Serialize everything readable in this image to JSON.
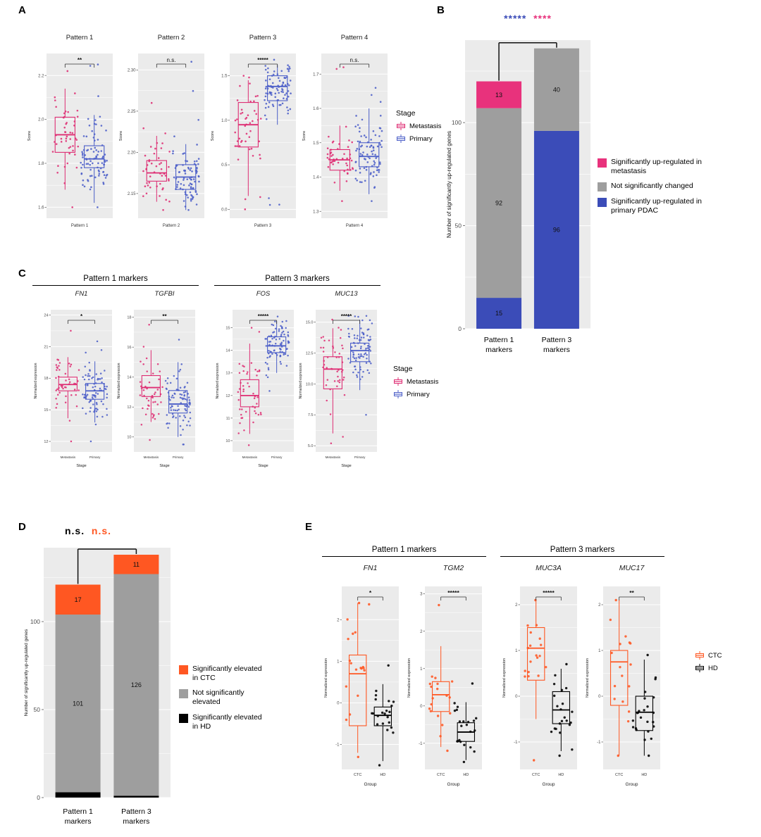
{
  "panels": {
    "A": {
      "label": "A"
    },
    "B": {
      "label": "B"
    },
    "C": {
      "label": "C"
    },
    "D": {
      "label": "D"
    },
    "E": {
      "label": "E"
    }
  },
  "colors": {
    "metastasis_pink": "#DE2D73",
    "primary_blue": "#4C5FC8",
    "bar_blue": "#3B4CB8",
    "bar_pink": "#E8327C",
    "not_sig_gray": "#9E9E9E",
    "ctc_orange": "#FF5722",
    "hd_black": "#000000",
    "plot_bg": "#EBEBEB"
  },
  "chart_data": [
    {
      "panel": "A",
      "type": "boxplot",
      "ylabel": "Score",
      "legend": {
        "title": "Stage",
        "items": [
          {
            "label": "Metastasis",
            "color": "#DE2D73"
          },
          {
            "label": "Primary",
            "color": "#4C5FC8"
          }
        ]
      },
      "facets": [
        {
          "title": "Pattern 1",
          "xlabel": "Pattern 1",
          "sig": "**",
          "ylim": [
            1.55,
            2.3
          ],
          "yticks": [
            "1.6",
            "1.8",
            "2.0",
            "2.2"
          ],
          "groups": [
            {
              "label": "Metastasis",
              "color": "#DE2D73",
              "whisker_low": 1.68,
              "q1": 1.85,
              "median": 1.93,
              "q3": 2.01,
              "whisker_high": 2.14,
              "points_min": 1.6,
              "points_max": 2.22,
              "n": 45
            },
            {
              "label": "Primary",
              "color": "#4C5FC8",
              "whisker_low": 1.62,
              "q1": 1.78,
              "median": 1.82,
              "q3": 1.88,
              "whisker_high": 2.02,
              "points_min": 1.6,
              "points_max": 2.25,
              "n": 85
            }
          ]
        },
        {
          "title": "Pattern 2",
          "xlabel": "Pattern 2",
          "sig": "n.s.",
          "ylim": [
            2.12,
            2.32
          ],
          "yticks": [
            "2.15",
            "2.20",
            "2.25",
            "2.30"
          ],
          "groups": [
            {
              "label": "Metastasis",
              "color": "#DE2D73",
              "whisker_low": 2.14,
              "q1": 2.165,
              "median": 2.175,
              "q3": 2.19,
              "whisker_high": 2.22,
              "points_min": 2.13,
              "points_max": 2.26,
              "n": 45
            },
            {
              "label": "Primary",
              "color": "#4C5FC8",
              "whisker_low": 2.13,
              "q1": 2.155,
              "median": 2.17,
              "q3": 2.185,
              "whisker_high": 2.21,
              "points_min": 2.13,
              "points_max": 2.31,
              "n": 85
            }
          ]
        },
        {
          "title": "Pattern 3",
          "xlabel": "Pattern 3",
          "sig": "*****",
          "ylim": [
            -0.1,
            1.75
          ],
          "yticks": [
            "0.0",
            "0.5",
            "1.0",
            "1.5"
          ],
          "groups": [
            {
              "label": "Metastasis",
              "color": "#DE2D73",
              "whisker_low": 0.15,
              "q1": 0.7,
              "median": 0.95,
              "q3": 1.2,
              "whisker_high": 1.45,
              "points_min": 0.0,
              "points_max": 1.5,
              "n": 45
            },
            {
              "label": "Primary",
              "color": "#4C5FC8",
              "whisker_low": 0.95,
              "q1": 1.22,
              "median": 1.38,
              "q3": 1.5,
              "whisker_high": 1.62,
              "points_min": 0.05,
              "points_max": 1.68,
              "n": 85
            }
          ]
        },
        {
          "title": "Pattern 4",
          "xlabel": "Pattern 4",
          "sig": "n.s.",
          "ylim": [
            1.28,
            1.76
          ],
          "yticks": [
            "1.3",
            "1.4",
            "1.5",
            "1.6",
            "1.7"
          ],
          "groups": [
            {
              "label": "Metastasis",
              "color": "#DE2D73",
              "whisker_low": 1.36,
              "q1": 1.42,
              "median": 1.45,
              "q3": 1.48,
              "whisker_high": 1.55,
              "points_min": 1.33,
              "points_max": 1.72,
              "n": 45
            },
            {
              "label": "Primary",
              "color": "#4C5FC8",
              "whisker_low": 1.35,
              "q1": 1.43,
              "median": 1.46,
              "q3": 1.5,
              "whisker_high": 1.6,
              "points_min": 1.33,
              "points_max": 1.66,
              "n": 85
            }
          ]
        }
      ]
    },
    {
      "panel": "B",
      "type": "stacked_bar",
      "sig": [
        {
          "text": "*****",
          "color": "#3B4CB8"
        },
        {
          "text": "****",
          "color": "#E8327C"
        }
      ],
      "ylabel": "Number of significantly up-regulated genes",
      "yticks": [
        "0",
        "50",
        "100"
      ],
      "ymax": 140,
      "categories": [
        [
          "Pattern 1",
          "markers"
        ],
        [
          "Pattern 3",
          "markers"
        ]
      ],
      "bars": [
        [
          {
            "value": 15,
            "color": "#3B4CB8"
          },
          {
            "value": 92,
            "color": "#9E9E9E"
          },
          {
            "value": 13,
            "color": "#E8327C"
          }
        ],
        [
          {
            "value": 96,
            "color": "#3B4CB8"
          },
          {
            "value": 40,
            "color": "#9E9E9E"
          }
        ]
      ],
      "legend": {
        "items": [
          {
            "label": "Significantly up-regulated in metastasis",
            "color": "#E8327C"
          },
          {
            "label": "Not significantly changed",
            "color": "#9E9E9E"
          },
          {
            "label": "Significantly up-regulated in primary PDAC",
            "color": "#3B4CB8"
          }
        ]
      }
    },
    {
      "panel": "C",
      "type": "boxplot",
      "ylabel": "Normalized expression",
      "xaxis_title": "Stage",
      "group_headers": [
        {
          "label": "Pattern 1 markers"
        },
        {
          "label": "Pattern 3 markers"
        }
      ],
      "legend": {
        "title": "Stage",
        "items": [
          {
            "label": "Metastasis",
            "color": "#DE2D73"
          },
          {
            "label": "Primary",
            "color": "#4C5FC8"
          }
        ]
      },
      "facets": [
        {
          "title": "FN1",
          "italic": true,
          "sig": "*",
          "ylim": [
            11,
            24.5
          ],
          "yticks": [
            "12",
            "15",
            "18",
            "21",
            "24"
          ],
          "groups": [
            {
              "label": "Metastasis",
              "color": "#DE2D73",
              "whisker_low": 14.2,
              "q1": 16.8,
              "median": 17.4,
              "q3": 18.1,
              "whisker_high": 20.0,
              "points_min": 12.0,
              "points_max": 22.5,
              "n": 45
            },
            {
              "label": "Primary",
              "color": "#4C5FC8",
              "whisker_low": 13.8,
              "q1": 16.0,
              "median": 16.8,
              "q3": 17.5,
              "whisker_high": 19.6,
              "points_min": 12.0,
              "points_max": 21.5,
              "n": 85
            }
          ]
        },
        {
          "title": "TGFBI",
          "italic": true,
          "sig": "**",
          "ylim": [
            9,
            18.5
          ],
          "yticks": [
            "10",
            "12",
            "14",
            "16",
            "18"
          ],
          "groups": [
            {
              "label": "Metastasis",
              "color": "#DE2D73",
              "whisker_low": 11.0,
              "q1": 12.7,
              "median": 13.3,
              "q3": 14.1,
              "whisker_high": 15.8,
              "points_min": 9.8,
              "points_max": 17.5,
              "n": 45
            },
            {
              "label": "Primary",
              "color": "#4C5FC8",
              "whisker_low": 10.0,
              "q1": 11.6,
              "median": 12.2,
              "q3": 13.1,
              "whisker_high": 15.0,
              "points_min": 9.5,
              "points_max": 16.5,
              "n": 85
            }
          ]
        },
        {
          "title": "FOS",
          "italic": true,
          "sig": "*****",
          "ylim": [
            9.5,
            15.8
          ],
          "yticks": [
            "10",
            "11",
            "12",
            "13",
            "14",
            "15"
          ],
          "groups": [
            {
              "label": "Metastasis",
              "color": "#DE2D73",
              "whisker_low": 10.3,
              "q1": 11.5,
              "median": 12.0,
              "q3": 12.7,
              "whisker_high": 14.3,
              "points_min": 9.8,
              "points_max": 15.0,
              "n": 45
            },
            {
              "label": "Primary",
              "color": "#4C5FC8",
              "whisker_low": 13.0,
              "q1": 13.9,
              "median": 14.2,
              "q3": 14.6,
              "whisker_high": 15.3,
              "points_min": 12.2,
              "points_max": 15.5,
              "n": 85
            }
          ]
        },
        {
          "title": "MUC13",
          "italic": true,
          "sig": "*****",
          "ylim": [
            4.5,
            16
          ],
          "yticks": [
            "5.0",
            "7.5",
            "10.0",
            "12.5",
            "15.0"
          ],
          "groups": [
            {
              "label": "Metastasis",
              "color": "#DE2D73",
              "whisker_low": 6.0,
              "q1": 9.6,
              "median": 11.2,
              "q3": 12.2,
              "whisker_high": 14.5,
              "points_min": 5.2,
              "points_max": 15.2,
              "n": 45
            },
            {
              "label": "Primary",
              "color": "#4C5FC8",
              "whisker_low": 9.5,
              "q1": 11.8,
              "median": 12.7,
              "q3": 13.3,
              "whisker_high": 15.2,
              "points_min": 7.5,
              "points_max": 15.5,
              "n": 85
            }
          ]
        }
      ]
    },
    {
      "panel": "D",
      "type": "stacked_bar",
      "sig": [
        {
          "text": "n.s.",
          "color": "#000000"
        },
        {
          "text": "n.s.",
          "color": "#FF5722"
        }
      ],
      "ylabel": "Number of significantly up-regulated genes",
      "yticks": [
        "0",
        "50",
        "100"
      ],
      "ymax": 142,
      "categories": [
        [
          "Pattern 1",
          "markers"
        ],
        [
          "Pattern 3",
          "markers"
        ]
      ],
      "bars": [
        [
          {
            "value": 3,
            "color": "#000000"
          },
          {
            "value": 101,
            "color": "#9E9E9E"
          },
          {
            "value": 17,
            "color": "#FF5722"
          }
        ],
        [
          {
            "value": 1,
            "color": "#000000"
          },
          {
            "value": 126,
            "color": "#9E9E9E"
          },
          {
            "value": 11,
            "color": "#FF5722"
          }
        ]
      ],
      "legend": {
        "items": [
          {
            "label": "Significantly elevated in CTC",
            "color": "#FF5722"
          },
          {
            "label": "Not significantly elevated",
            "color": "#9E9E9E"
          },
          {
            "label": "Significantly elevated in HD",
            "color": "#000000"
          }
        ]
      }
    },
    {
      "panel": "E",
      "type": "boxplot",
      "ylabel": "Normalized expression",
      "xaxis_title": "Group",
      "group_headers": [
        {
          "label": "Pattern 1 markers"
        },
        {
          "label": "Pattern 3 markers"
        }
      ],
      "legend": {
        "title": "",
        "items": [
          {
            "label": "CTC",
            "color": "#FF5722"
          },
          {
            "label": "HD",
            "color": "#000000"
          }
        ]
      },
      "facets": [
        {
          "title": "FN1",
          "italic": true,
          "sig": "*",
          "ylim": [
            -1.6,
            2.8
          ],
          "yticks": [
            "-1",
            "0",
            "1",
            "2"
          ],
          "groups": [
            {
              "label": "CTC",
              "color": "#FF5722",
              "whisker_low": -1.2,
              "q1": -0.55,
              "median": 0.7,
              "q3": 1.15,
              "whisker_high": 2.4,
              "points_min": -1.3,
              "points_max": 2.4,
              "n": 17
            },
            {
              "label": "HD",
              "color": "#000000",
              "whisker_low": -1.4,
              "q1": -0.55,
              "median": -0.3,
              "q3": -0.1,
              "whisker_high": 0.45,
              "points_min": -1.5,
              "points_max": 0.9,
              "n": 20
            }
          ]
        },
        {
          "title": "TGM2",
          "italic": true,
          "sig": "*****",
          "ylim": [
            -1.7,
            3.2
          ],
          "yticks": [
            "-1",
            "0",
            "1",
            "2",
            "3"
          ],
          "groups": [
            {
              "label": "CTC",
              "color": "#FF5722",
              "whisker_low": -1.1,
              "q1": -0.15,
              "median": 0.3,
              "q3": 0.65,
              "whisker_high": 1.6,
              "points_min": -1.2,
              "points_max": 2.7,
              "n": 17
            },
            {
              "label": "HD",
              "color": "#000000",
              "whisker_low": -1.45,
              "q1": -0.95,
              "median": -0.7,
              "q3": -0.45,
              "whisker_high": 0.1,
              "points_min": -1.5,
              "points_max": 0.6,
              "n": 20
            }
          ]
        },
        {
          "title": "MUC3A",
          "italic": true,
          "sig": "*****",
          "ylim": [
            -1.6,
            2.4
          ],
          "yticks": [
            "-1",
            "0",
            "1",
            "2"
          ],
          "groups": [
            {
              "label": "CTC",
              "color": "#FF5722",
              "whisker_low": -0.5,
              "q1": 0.35,
              "median": 1.05,
              "q3": 1.5,
              "whisker_high": 2.1,
              "points_min": -1.4,
              "points_max": 2.1,
              "n": 17
            },
            {
              "label": "HD",
              "color": "#000000",
              "whisker_low": -1.2,
              "q1": -0.6,
              "median": -0.3,
              "q3": 0.1,
              "whisker_high": 0.6,
              "points_min": -1.3,
              "points_max": 0.7,
              "n": 20
            }
          ]
        },
        {
          "title": "MUC17",
          "italic": true,
          "sig": "**",
          "ylim": [
            -1.6,
            2.4
          ],
          "yticks": [
            "-1",
            "0",
            "1",
            "2"
          ],
          "groups": [
            {
              "label": "CTC",
              "color": "#FF5722",
              "whisker_low": -1.3,
              "q1": -0.2,
              "median": 0.75,
              "q3": 1.0,
              "whisker_high": 2.1,
              "points_min": -1.3,
              "points_max": 2.1,
              "n": 15
            },
            {
              "label": "HD",
              "color": "#000000",
              "whisker_low": -1.3,
              "q1": -0.75,
              "median": -0.35,
              "q3": 0.0,
              "whisker_high": 0.8,
              "points_min": -1.3,
              "points_max": 0.9,
              "n": 22
            }
          ]
        }
      ]
    }
  ]
}
